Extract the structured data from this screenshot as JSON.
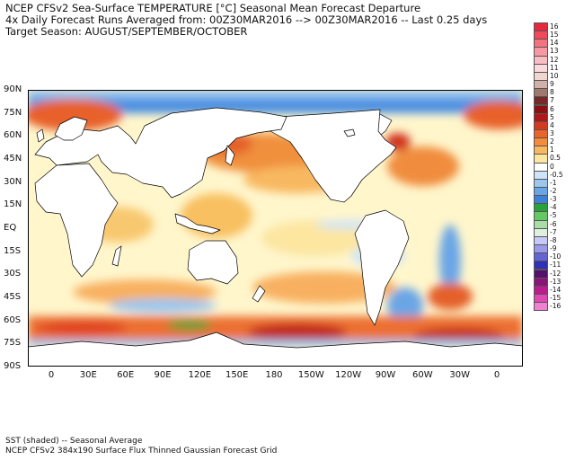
{
  "header": {
    "line1": "NCEP CFSv2 Sea-Surface TEMPERATURE [°C] Seasonal Mean Forecast Departure",
    "line2": "4x Daily Forecast Runs Averaged from: 00Z30MAR2016 --> 00Z30MAR2016 -- Last 0.25 days",
    "line3": "Target Season: AUGUST/SEPTEMBER/OCTOBER"
  },
  "map": {
    "lat_labels": [
      "90N",
      "75N",
      "60N",
      "45N",
      "30N",
      "15N",
      "EQ",
      "15S",
      "30S",
      "45S",
      "60S",
      "75S",
      "90S"
    ],
    "lon_labels": [
      "0",
      "30E",
      "60E",
      "90E",
      "120E",
      "150E",
      "180",
      "150W",
      "120W",
      "90W",
      "60W",
      "30W",
      "0"
    ]
  },
  "colorbar": {
    "labels": [
      "16",
      "15",
      "14",
      "13",
      "12",
      "11",
      "10",
      "9",
      "8",
      "7",
      "6",
      "5",
      "4",
      "3",
      "2",
      "1",
      "0.5",
      "0",
      "-0.5",
      "-1",
      "-2",
      "-3",
      "-4",
      "-5",
      "-6",
      "-7",
      "-8",
      "-9",
      "-10",
      "-11",
      "-12",
      "-13",
      "-14",
      "-15",
      "-16"
    ],
    "colors": [
      "#e8283c",
      "#f04a5a",
      "#f4727e",
      "#f898a2",
      "#fbbcc2",
      "#fdd8dc",
      "#f0d8d0",
      "#d0b0a8",
      "#a07870",
      "#782828",
      "#8c1010",
      "#b01818",
      "#d43a20",
      "#ec6428",
      "#f48c3c",
      "#f8b860",
      "#fce6a0",
      "#ffffff",
      "#cfe4f8",
      "#9cc6ee",
      "#6aa6e6",
      "#3e82d8",
      "#2aa23c",
      "#66c864",
      "#aadca8",
      "#e0f0e0",
      "#c8c8f8",
      "#9a9ae8",
      "#6464d4",
      "#3030b8",
      "#56106c",
      "#8a1478",
      "#be1c8e",
      "#e048b4",
      "#f080d0"
    ]
  },
  "footer": {
    "line1": "SST (shaded) -- Seasonal Average",
    "line2": "NCEP CFSv2 384x190 Surface Flux Thinned Gaussian Forecast Grid"
  }
}
